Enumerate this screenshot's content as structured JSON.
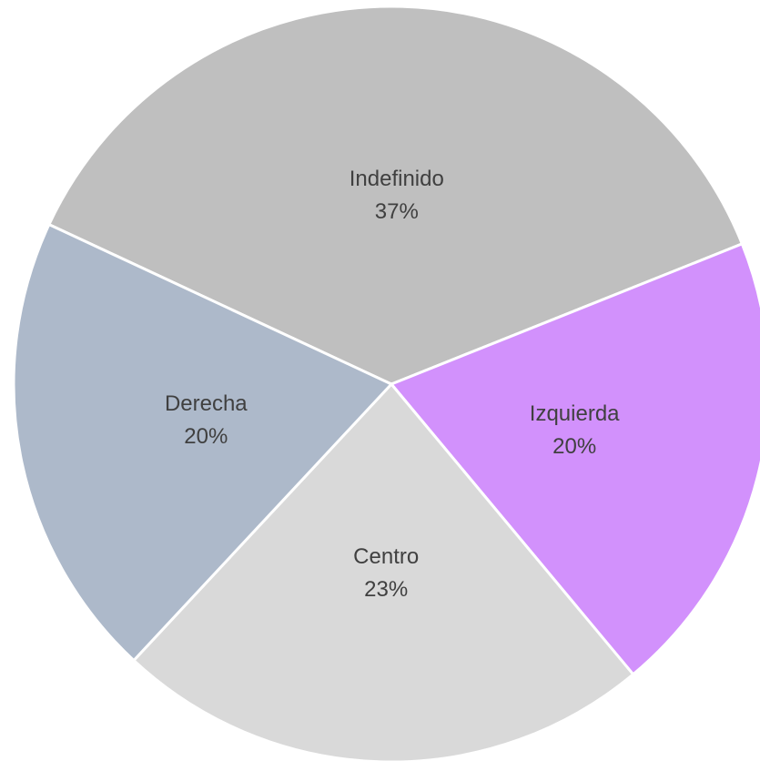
{
  "chart_data": {
    "type": "pie",
    "categories": [
      "Indefinido",
      "Izquierda",
      "Centro",
      "Derecha"
    ],
    "values": [
      37,
      20,
      23,
      20
    ],
    "value_labels": [
      "37%",
      "20%",
      "23%",
      "20%"
    ],
    "colors": [
      "#bfbfbf",
      "#d291fc",
      "#d9d9d9",
      "#adb9ca"
    ]
  }
}
